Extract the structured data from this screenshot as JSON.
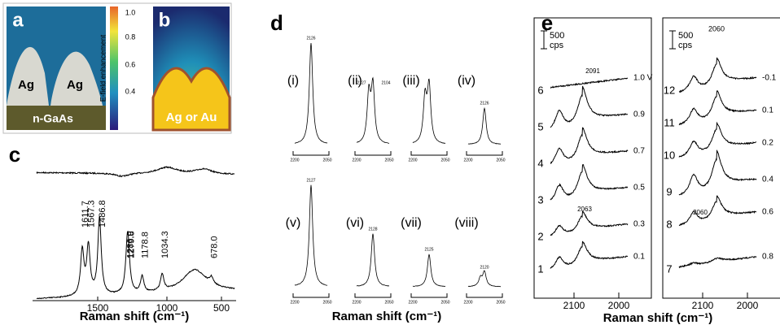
{
  "panels": {
    "a": {
      "label": "a",
      "metal_left": "Ag",
      "metal_right": "Ag",
      "substrate": "n-GaAs",
      "colorbar": {
        "title": "E-field enhancement",
        "ticks": [
          "1.0",
          "0.8",
          "0.6",
          "0.4"
        ]
      }
    },
    "b": {
      "label": "b",
      "metal": "Ag or Au"
    },
    "c": {
      "label": "c",
      "peak_labels": [
        "1611.7",
        "1567.3",
        "1486.8",
        "1286.0",
        "1279.8",
        "1178.8",
        "1034.3",
        "678.0"
      ],
      "x_ticks": [
        "1500",
        "1000",
        "500"
      ],
      "x_label": "Raman shift (cm⁻¹)"
    },
    "d": {
      "label": "d",
      "spectra": [
        {
          "name": "(i)",
          "peaks": [
            "2126"
          ]
        },
        {
          "name": "(ii)",
          "peaks": [
            "2127",
            "2104"
          ]
        },
        {
          "name": "(iii)",
          "peaks": []
        },
        {
          "name": "(iv)",
          "peaks": [
            "2126"
          ]
        },
        {
          "name": "(v)",
          "peaks": [
            "2127"
          ]
        },
        {
          "name": "(vi)",
          "peaks": [
            "2128"
          ]
        },
        {
          "name": "(vii)",
          "peaks": [
            "2125"
          ]
        },
        {
          "name": "(viii)",
          "peaks": [
            "2120"
          ]
        }
      ],
      "axis_ticks": [
        "2200",
        "2050"
      ],
      "x_label": "Raman shift (cm⁻¹)"
    },
    "e": {
      "label": "e",
      "scale": "500\ncps",
      "left": {
        "traces": [
          "1",
          "2",
          "3",
          "4",
          "5",
          "6"
        ],
        "potentials": [
          "0.1",
          "0.3",
          "0.5",
          "0.7",
          "0.9",
          "1.0 V"
        ],
        "peaks": [
          "2063",
          "2091"
        ],
        "x_ticks": [
          "2100",
          "2000"
        ]
      },
      "right": {
        "traces": [
          "7",
          "8",
          "9",
          "10",
          "11",
          "12"
        ],
        "potentials": [
          "0.8",
          "0.6",
          "0.4",
          "0.2",
          "0.1",
          "-0.1"
        ],
        "peaks": [
          "2060",
          "2060"
        ],
        "x_ticks": [
          "2100",
          "2000"
        ]
      },
      "x_label": "Raman shift (cm⁻¹)"
    }
  }
}
